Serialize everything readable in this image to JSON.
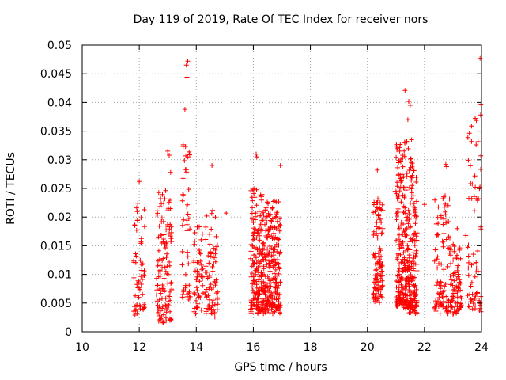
{
  "chart_data": {
    "type": "scatter",
    "title": "Day 119 of 2019, Rate Of TEC Index for receiver nors",
    "xlabel": "GPS time / hours",
    "ylabel": "ROTI / TECUs",
    "xlim": [
      10,
      24
    ],
    "ylim": [
      0,
      0.05
    ],
    "xticks": [
      "10",
      "12",
      "14",
      "16",
      "18",
      "20",
      "22",
      "24"
    ],
    "yticks": [
      "0",
      "0.005",
      "0.01",
      "0.015",
      "0.02",
      "0.025",
      "0.03",
      "0.035",
      "0.04",
      "0.045",
      "0.05"
    ],
    "grid": true,
    "marker": "+",
    "color": "#ff0000",
    "series": [
      {
        "name": "ROTI",
        "clusters": [
          {
            "t0": 11.8,
            "t1": 12.2,
            "n": 55,
            "ymin": 0.003,
            "ymax": 0.026
          },
          {
            "t0": 12.6,
            "t1": 13.15,
            "n": 130,
            "ymin": 0.0015,
            "ymax": 0.0315
          },
          {
            "t0": 13.5,
            "t1": 13.8,
            "n": 45,
            "ymin": 0.004,
            "ymax": 0.047
          },
          {
            "t0": 13.9,
            "t1": 14.25,
            "n": 50,
            "ymin": 0.003,
            "ymax": 0.022
          },
          {
            "t0": 14.3,
            "t1": 14.75,
            "n": 75,
            "ymin": 0.0025,
            "ymax": 0.029
          },
          {
            "t0": 15.9,
            "t1": 16.35,
            "n": 170,
            "ymin": 0.003,
            "ymax": 0.031
          },
          {
            "t0": 16.35,
            "t1": 16.95,
            "n": 230,
            "ymin": 0.003,
            "ymax": 0.029
          },
          {
            "t0": 20.2,
            "t1": 20.55,
            "n": 110,
            "ymin": 0.005,
            "ymax": 0.028
          },
          {
            "t0": 21.0,
            "t1": 21.45,
            "n": 220,
            "ymin": 0.004,
            "ymax": 0.042
          },
          {
            "t0": 21.45,
            "t1": 21.75,
            "n": 150,
            "ymin": 0.003,
            "ymax": 0.0385
          },
          {
            "t0": 22.35,
            "t1": 22.9,
            "n": 90,
            "ymin": 0.003,
            "ymax": 0.029
          },
          {
            "t0": 22.9,
            "t1": 23.3,
            "n": 80,
            "ymin": 0.003,
            "ymax": 0.018
          },
          {
            "t0": 23.5,
            "t1": 24.0,
            "n": 70,
            "ymin": 0.003,
            "ymax": 0.0475
          }
        ],
        "outliers": [
          {
            "x": 13.65,
            "y": 0.0465
          },
          {
            "x": 13.7,
            "y": 0.0472
          },
          {
            "x": 13.67,
            "y": 0.0444
          },
          {
            "x": 13.6,
            "y": 0.0388
          },
          {
            "x": 13.62,
            "y": 0.0283
          },
          {
            "x": 13.0,
            "y": 0.0315
          },
          {
            "x": 13.05,
            "y": 0.0308
          },
          {
            "x": 13.1,
            "y": 0.0278
          },
          {
            "x": 12.0,
            "y": 0.0262
          },
          {
            "x": 11.95,
            "y": 0.0224
          },
          {
            "x": 21.32,
            "y": 0.0421
          },
          {
            "x": 21.45,
            "y": 0.0402
          },
          {
            "x": 21.5,
            "y": 0.0395
          },
          {
            "x": 21.42,
            "y": 0.037
          },
          {
            "x": 21.55,
            "y": 0.0335
          },
          {
            "x": 21.38,
            "y": 0.0332
          },
          {
            "x": 23.95,
            "y": 0.0477
          },
          {
            "x": 23.98,
            "y": 0.0397
          },
          {
            "x": 23.97,
            "y": 0.0378
          },
          {
            "x": 22.75,
            "y": 0.0292
          },
          {
            "x": 22.78,
            "y": 0.0288
          },
          {
            "x": 16.1,
            "y": 0.031
          },
          {
            "x": 16.12,
            "y": 0.0305
          },
          {
            "x": 16.95,
            "y": 0.029
          },
          {
            "x": 14.55,
            "y": 0.029
          },
          {
            "x": 20.35,
            "y": 0.0282
          },
          {
            "x": 20.97,
            "y": 0.0245
          },
          {
            "x": 22.0,
            "y": 0.0222
          },
          {
            "x": 21.7,
            "y": 0.0202
          },
          {
            "x": 22.65,
            "y": 0.0232
          },
          {
            "x": 15.05,
            "y": 0.0207
          },
          {
            "x": 11.85,
            "y": 0.0029
          },
          {
            "x": 12.85,
            "y": 0.0016
          },
          {
            "x": 23.15,
            "y": 0.018
          },
          {
            "x": 23.45,
            "y": 0.0168
          },
          {
            "x": 14.75,
            "y": 0.0048
          }
        ]
      }
    ]
  }
}
